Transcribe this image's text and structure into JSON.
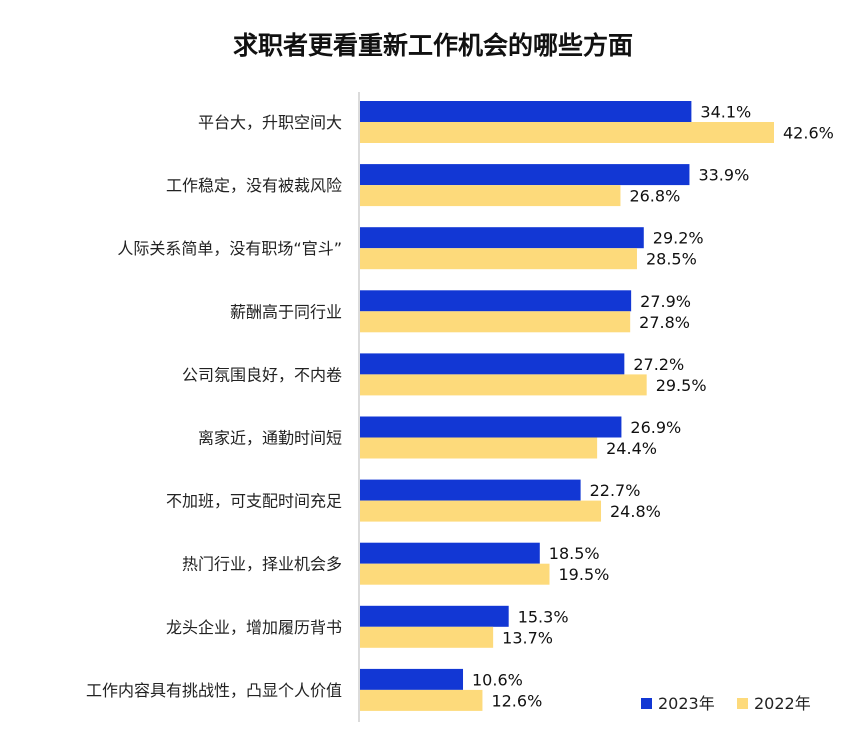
{
  "chart_data": {
    "type": "bar",
    "orientation": "horizontal",
    "title": "求职者更看重新工作机会的哪些方面",
    "xlabel": "",
    "ylabel": "",
    "xlim": [
      0,
      45
    ],
    "grid": false,
    "legend_position": "bottom-right",
    "categories": [
      "平台大，升职空间大",
      "工作稳定，没有被裁风险",
      "人际关系简单，没有职场“官斗”",
      "薪酬高于同行业",
      "公司氛围良好，不内卷",
      "离家近，通勤时间短",
      "不加班，可支配时间充足",
      "热门行业，择业机会多",
      "龙头企业，增加履历背书",
      "工作内容具有挑战性，凸显个人价值"
    ],
    "series": [
      {
        "name": "2023年",
        "color": "#1237d4",
        "values": [
          34.1,
          33.9,
          29.2,
          27.9,
          27.2,
          26.9,
          22.7,
          18.5,
          15.3,
          10.6
        ],
        "labels": [
          "34.1%",
          "33.9%",
          "29.2%",
          "27.9%",
          "27.2%",
          "26.9%",
          "22.7%",
          "18.5%",
          "15.3%",
          "10.6%"
        ]
      },
      {
        "name": "2022年",
        "color": "#fdda7b",
        "values": [
          42.6,
          26.8,
          28.5,
          27.8,
          29.5,
          24.4,
          24.8,
          19.5,
          13.7,
          12.6
        ],
        "labels": [
          "42.6%",
          "26.8%",
          "28.5%",
          "27.8%",
          "29.5%",
          "24.4%",
          "24.8%",
          "19.5%",
          "13.7%",
          "12.6%"
        ]
      }
    ]
  }
}
